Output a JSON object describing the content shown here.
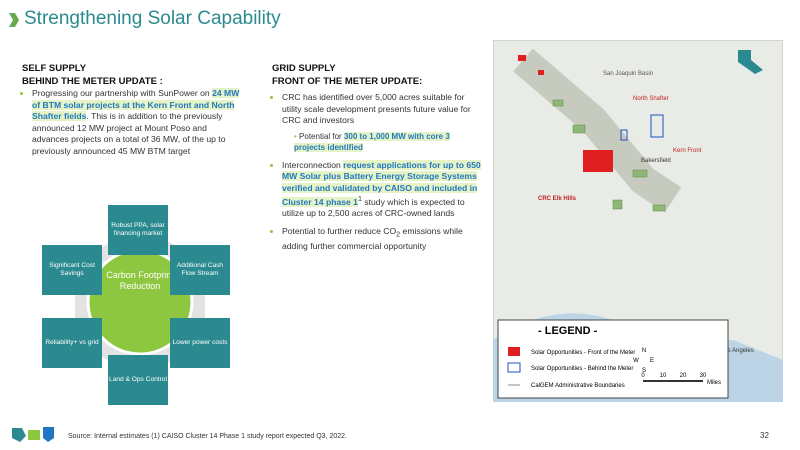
{
  "header": {
    "title": "Strengthening Solar Capability"
  },
  "self_supply": {
    "heading": "SELF SUPPLY",
    "subheading": "BEHIND THE METER UPDATE :",
    "bullet": [
      "Progressing our partnership with SunPower on ",
      "24 MW of BTM solar projects at the Kern Front and North Shafter fields",
      ". This is in addition to the previously announced 12 MW project at Mount Poso and advances projects on a total of 36 MW, of the up to previously announced 45 MW BTM target"
    ]
  },
  "diagram": {
    "center": "Carbon Footprint Reduction",
    "nodes": [
      "Robust PPA, solar financing market",
      "Additional Cash Flow Stream",
      "Lower power costs",
      "Land & Ops Control",
      "Reliability+ vs grid",
      "Significant Cost Savings"
    ]
  },
  "grid_supply": {
    "heading": "GRID SUPPLY",
    "subheading": "FRONT OF THE METER UPDATE:",
    "bullets": [
      [
        "CRC has identified over 5,000 acres suitable for utility scale development presents future value for CRC and investors"
      ],
      [
        "Interconnection ",
        "request applications for up to 650 MW Solar plus Battery Energy Storage Systems verified and validated by CAISO and included in Cluster 14 phase 1",
        "1",
        " study which is expected to utilize up to 2,500 acres of CRC-owned lands"
      ],
      [
        "Potential to further reduce CO",
        "2",
        " emissions while adding further commercial opportunity"
      ]
    ],
    "sub_bullet": [
      "Potential for ",
      "300 to 1,000 MW with core 3 projects identified"
    ]
  },
  "map": {
    "labels": [
      "San Joaquin Basin",
      "North Shafter",
      "Kern Front",
      "Bakersfield",
      "CRC Elk Hills",
      "Los Angeles"
    ],
    "legend": {
      "title": "- LEGEND -",
      "items": [
        "Solar Opportunities - Front of the Meter",
        "Solar Opportunities - Behind the Meter",
        "CalGEM Administrative Boundaries"
      ],
      "scale": [
        "0",
        "10",
        "20",
        "30",
        "Miles"
      ],
      "compass": [
        "N",
        "W",
        "E",
        "S"
      ]
    }
  },
  "footer": {
    "source": "Source: Internal estimates (1) CAISO Cluster 14 Phase 1 study report expected Q3, 2022.",
    "page": "32"
  }
}
